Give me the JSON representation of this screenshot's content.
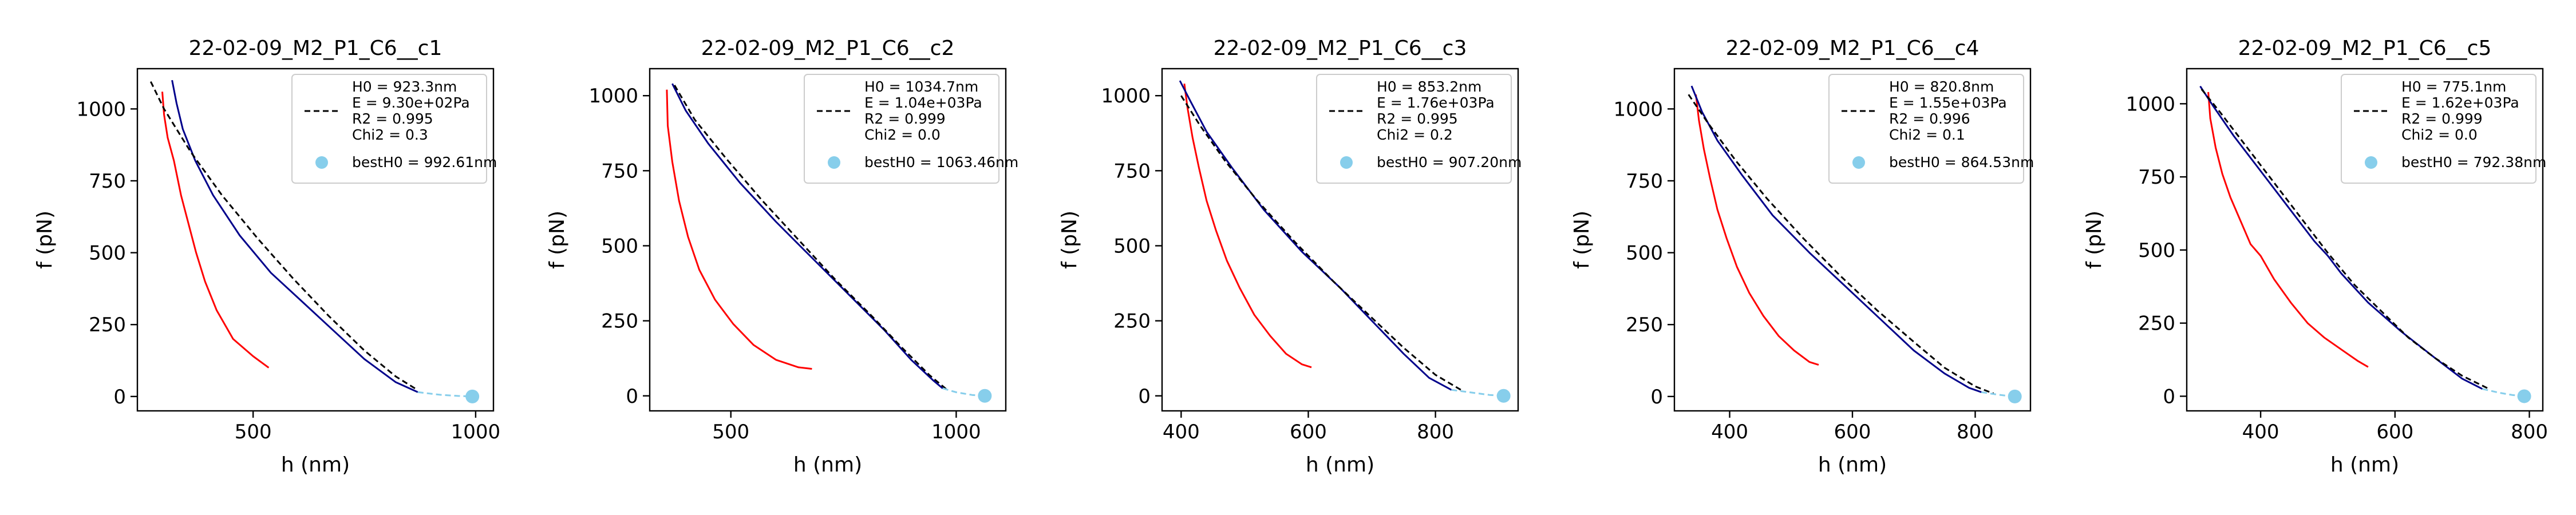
{
  "chart_data": [
    {
      "type": "line",
      "title": "22-02-09_M2_P1_C6__c1",
      "xlabel": "h (nm)",
      "ylabel": "f (pN)",
      "xlim": [
        240,
        1040
      ],
      "ylim": [
        -50,
        1140
      ],
      "xticks": [
        500,
        1000
      ],
      "yticks": [
        0,
        250,
        500,
        750,
        1000
      ],
      "legend": {
        "position": "top-right",
        "entries": [
          "H0 = 923.3nm",
          "E = 9.30e+02Pa",
          "R2 = 0.995",
          "Chi2 = 0.3"
        ],
        "point_label": "bestH0 = 992.61nm"
      },
      "series": [
        {
          "role": "retraction",
          "color": "#ff0000",
          "points": [
            [
              296,
              1060
            ],
            [
              300,
              980
            ],
            [
              308,
              900
            ],
            [
              322,
              820
            ],
            [
              338,
              700
            ],
            [
              355,
              600
            ],
            [
              372,
              500
            ],
            [
              392,
              400
            ],
            [
              418,
              300
            ],
            [
              455,
              200
            ],
            [
              500,
              140
            ],
            [
              535,
              100
            ]
          ]
        },
        {
          "role": "approach",
          "color": "#00008b",
          "points": [
            [
              318,
              1100
            ],
            [
              328,
              1020
            ],
            [
              342,
              930
            ],
            [
              370,
              820
            ],
            [
              410,
              700
            ],
            [
              470,
              560
            ],
            [
              540,
              430
            ],
            [
              610,
              330
            ],
            [
              680,
              230
            ],
            [
              750,
              130
            ],
            [
              820,
              50
            ],
            [
              870,
              15
            ]
          ]
        },
        {
          "role": "fit",
          "color": "#000000",
          "dashed": true,
          "points": [
            [
              270,
              1095
            ],
            [
              300,
              1000
            ],
            [
              360,
              850
            ],
            [
              430,
              700
            ],
            [
              510,
              550
            ],
            [
              590,
              410
            ],
            [
              670,
              280
            ],
            [
              750,
              160
            ],
            [
              820,
              70
            ],
            [
              870,
              22
            ]
          ]
        },
        {
          "role": "extrapolation",
          "color": "#87ceeb",
          "dashed": true,
          "points": [
            [
              870,
              15
            ],
            [
              920,
              6
            ],
            [
              960,
              2
            ],
            [
              992,
              0
            ]
          ]
        }
      ],
      "best_point": {
        "x": 992.61,
        "y": 0,
        "color": "#87ceeb"
      }
    },
    {
      "type": "line",
      "title": "22-02-09_M2_P1_C6__c2",
      "xlabel": "h (nm)",
      "ylabel": "f (pN)",
      "xlim": [
        320,
        1110
      ],
      "ylim": [
        -50,
        1090
      ],
      "xticks": [
        500,
        1000
      ],
      "yticks": [
        0,
        250,
        500,
        750,
        1000
      ],
      "legend": {
        "position": "top-right",
        "entries": [
          "H0 = 1034.7nm",
          "E = 1.04e+03Pa",
          "R2 = 0.999",
          "Chi2 = 0.0"
        ],
        "point_label": "bestH0 = 1063.46nm"
      },
      "series": [
        {
          "role": "retraction",
          "color": "#ff0000",
          "points": [
            [
              358,
              1020
            ],
            [
              360,
              900
            ],
            [
              370,
              780
            ],
            [
              385,
              650
            ],
            [
              405,
              530
            ],
            [
              430,
              420
            ],
            [
              465,
              320
            ],
            [
              505,
              240
            ],
            [
              550,
              170
            ],
            [
              600,
              120
            ],
            [
              650,
              95
            ],
            [
              680,
              90
            ]
          ]
        },
        {
          "role": "approach",
          "color": "#00008b",
          "points": [
            [
              370,
              1040
            ],
            [
              400,
              950
            ],
            [
              450,
              840
            ],
            [
              520,
              710
            ],
            [
              600,
              580
            ],
            [
              680,
              460
            ],
            [
              760,
              340
            ],
            [
              840,
              220
            ],
            [
              900,
              120
            ],
            [
              950,
              50
            ],
            [
              970,
              25
            ]
          ]
        },
        {
          "role": "fit",
          "color": "#000000",
          "dashed": true,
          "points": [
            [
              375,
              1035
            ],
            [
              420,
              920
            ],
            [
              490,
              790
            ],
            [
              570,
              650
            ],
            [
              650,
              520
            ],
            [
              730,
              390
            ],
            [
              810,
              270
            ],
            [
              880,
              160
            ],
            [
              940,
              70
            ],
            [
              980,
              20
            ]
          ]
        },
        {
          "role": "extrapolation",
          "color": "#87ceeb",
          "dashed": true,
          "points": [
            [
              970,
              25
            ],
            [
              1000,
              12
            ],
            [
              1035,
              3
            ],
            [
              1063,
              0
            ]
          ]
        }
      ],
      "best_point": {
        "x": 1063.46,
        "y": 0,
        "color": "#87ceeb"
      }
    },
    {
      "type": "line",
      "title": "22-02-09_M2_P1_C6__c3",
      "xlabel": "h (nm)",
      "ylabel": "f (pN)",
      "xlim": [
        370,
        930
      ],
      "ylim": [
        -50,
        1090
      ],
      "xticks": [
        400,
        600,
        800
      ],
      "yticks": [
        0,
        250,
        500,
        750,
        1000
      ],
      "legend": {
        "position": "top-right",
        "entries": [
          "H0 = 853.2nm",
          "E = 1.76e+03Pa",
          "R2 = 0.995",
          "Chi2 = 0.2"
        ],
        "point_label": "bestH0 = 907.20nm"
      },
      "series": [
        {
          "role": "retraction",
          "color": "#ff0000",
          "points": [
            [
              405,
              1040
            ],
            [
              410,
              960
            ],
            [
              418,
              860
            ],
            [
              428,
              760
            ],
            [
              440,
              650
            ],
            [
              455,
              550
            ],
            [
              472,
              450
            ],
            [
              492,
              360
            ],
            [
              515,
              270
            ],
            [
              540,
              200
            ],
            [
              565,
              140
            ],
            [
              590,
              105
            ],
            [
              605,
              95
            ]
          ]
        },
        {
          "role": "approach",
          "color": "#00008b",
          "points": [
            [
              398,
              1050
            ],
            [
              415,
              980
            ],
            [
              440,
              880
            ],
            [
              480,
              760
            ],
            [
              530,
              620
            ],
            [
              590,
              480
            ],
            [
              650,
              360
            ],
            [
              700,
              250
            ],
            [
              750,
              140
            ],
            [
              790,
              60
            ],
            [
              825,
              20
            ]
          ]
        },
        {
          "role": "fit",
          "color": "#000000",
          "dashed": true,
          "points": [
            [
              400,
              1000
            ],
            [
              430,
              900
            ],
            [
              470,
              780
            ],
            [
              520,
              650
            ],
            [
              580,
              510
            ],
            [
              640,
              380
            ],
            [
              700,
              260
            ],
            [
              750,
              160
            ],
            [
              800,
              70
            ],
            [
              840,
              20
            ]
          ]
        },
        {
          "role": "extrapolation",
          "color": "#87ceeb",
          "dashed": true,
          "points": [
            [
              825,
              20
            ],
            [
              860,
              10
            ],
            [
              885,
              3
            ],
            [
              907,
              0
            ]
          ]
        }
      ],
      "best_point": {
        "x": 907.2,
        "y": 0,
        "color": "#87ceeb"
      }
    },
    {
      "type": "line",
      "title": "22-02-09_M2_P1_C6__c4",
      "xlabel": "h (nm)",
      "ylabel": "f (pN)",
      "xlim": [
        310,
        890
      ],
      "ylim": [
        -50,
        1140
      ],
      "xticks": [
        400,
        600,
        800
      ],
      "yticks": [
        0,
        250,
        500,
        750,
        1000
      ],
      "legend": {
        "position": "top-right",
        "entries": [
          "H0 = 820.8nm",
          "E = 1.55e+03Pa",
          "R2 = 0.996",
          "Chi2 = 0.1"
        ],
        "point_label": "bestH0 = 864.53nm"
      },
      "series": [
        {
          "role": "retraction",
          "color": "#ff0000",
          "points": [
            [
              345,
              1050
            ],
            [
              350,
              960
            ],
            [
              358,
              860
            ],
            [
              368,
              760
            ],
            [
              380,
              650
            ],
            [
              395,
              550
            ],
            [
              412,
              450
            ],
            [
              432,
              360
            ],
            [
              455,
              280
            ],
            [
              480,
              210
            ],
            [
              505,
              160
            ],
            [
              530,
              120
            ],
            [
              545,
              110
            ]
          ]
        },
        {
          "role": "approach",
          "color": "#00008b",
          "points": [
            [
              338,
              1080
            ],
            [
              355,
              990
            ],
            [
              380,
              890
            ],
            [
              420,
              770
            ],
            [
              470,
              630
            ],
            [
              530,
              500
            ],
            [
              590,
              380
            ],
            [
              650,
              260
            ],
            [
              700,
              160
            ],
            [
              750,
              80
            ],
            [
              790,
              30
            ],
            [
              810,
              15
            ]
          ]
        },
        {
          "role": "fit",
          "color": "#000000",
          "dashed": true,
          "points": [
            [
              333,
              1050
            ],
            [
              365,
              950
            ],
            [
              410,
              820
            ],
            [
              460,
              690
            ],
            [
              520,
              550
            ],
            [
              580,
              420
            ],
            [
              640,
              300
            ],
            [
              700,
              190
            ],
            [
              750,
              100
            ],
            [
              800,
              35
            ],
            [
              830,
              10
            ]
          ]
        },
        {
          "role": "extrapolation",
          "color": "#87ceeb",
          "dashed": true,
          "points": [
            [
              810,
              15
            ],
            [
              835,
              7
            ],
            [
              850,
              3
            ],
            [
              864.5,
              0
            ]
          ]
        }
      ],
      "best_point": {
        "x": 864.53,
        "y": 0,
        "color": "#87ceeb"
      }
    },
    {
      "type": "line",
      "title": "22-02-09_M2_P1_C6__c5",
      "xlabel": "h (nm)",
      "ylabel": "f (pN)",
      "xlim": [
        290,
        820
      ],
      "ylim": [
        -50,
        1120
      ],
      "xticks": [
        400,
        600,
        800
      ],
      "yticks": [
        0,
        250,
        500,
        750,
        1000
      ],
      "legend": {
        "position": "top-right",
        "entries": [
          "H0 = 775.1nm",
          "E = 1.62e+03Pa",
          "R2 = 0.999",
          "Chi2 = 0.0"
        ],
        "point_label": "bestH0 = 792.38nm"
      },
      "series": [
        {
          "role": "retraction",
          "color": "#ff0000",
          "points": [
            [
              322,
              1040
            ],
            [
              325,
              950
            ],
            [
              333,
              850
            ],
            [
              343,
              760
            ],
            [
              355,
              680
            ],
            [
              370,
              600
            ],
            [
              385,
              520
            ],
            [
              400,
              480
            ],
            [
              420,
              400
            ],
            [
              445,
              320
            ],
            [
              470,
              250
            ],
            [
              495,
              200
            ],
            [
              520,
              160
            ],
            [
              545,
              120
            ],
            [
              560,
              100
            ]
          ]
        },
        {
          "role": "approach",
          "color": "#00008b",
          "points": [
            [
              310,
              1060
            ],
            [
              330,
              990
            ],
            [
              360,
              890
            ],
            [
              400,
              770
            ],
            [
              440,
              650
            ],
            [
              480,
              530
            ],
            [
              500,
              480
            ],
            [
              520,
              420
            ],
            [
              560,
              320
            ],
            [
              610,
              220
            ],
            [
              660,
              130
            ],
            [
              700,
              60
            ],
            [
              730,
              25
            ]
          ]
        },
        {
          "role": "fit",
          "color": "#000000",
          "dashed": true,
          "points": [
            [
              312,
              1050
            ],
            [
              340,
              970
            ],
            [
              380,
              850
            ],
            [
              420,
              730
            ],
            [
              460,
              610
            ],
            [
              500,
              490
            ],
            [
              540,
              380
            ],
            [
              580,
              290
            ],
            [
              620,
              200
            ],
            [
              660,
              130
            ],
            [
              700,
              70
            ],
            [
              740,
              25
            ]
          ]
        },
        {
          "role": "extrapolation",
          "color": "#87ceeb",
          "dashed": true,
          "points": [
            [
              730,
              25
            ],
            [
              755,
              12
            ],
            [
              775,
              4
            ],
            [
              792.4,
              0
            ]
          ]
        }
      ],
      "best_point": {
        "x": 792.38,
        "y": 0,
        "color": "#87ceeb"
      }
    }
  ]
}
